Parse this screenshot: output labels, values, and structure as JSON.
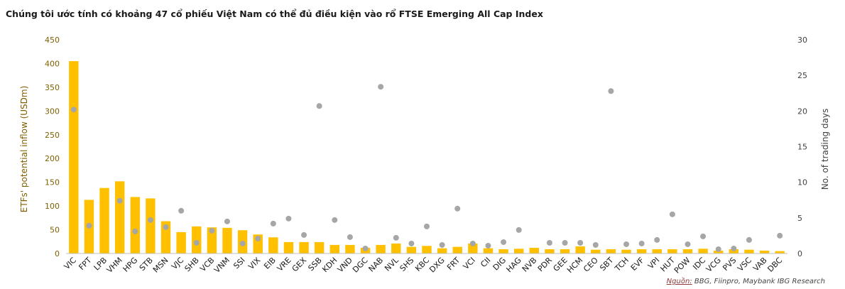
{
  "title": "Chúng tôi ước tính có khoảng 47 cổ phiếu Việt Nam có thể đủ điều kiện vào rổ FTSE Emerging All Cap Index",
  "source": {
    "label": "Nguồn:",
    "text": "BBG, Fiinpro, Maybank IBG Research"
  },
  "colors": {
    "bar": "#FFC000",
    "dot": "#A6A6A6",
    "left_axis_text": "#7F6000",
    "right_axis_text": "#404040",
    "axis_line": "#BFBFBF"
  },
  "chart_data": {
    "type": "bar",
    "categories": [
      "VIC",
      "FPT",
      "LPB",
      "VHM",
      "HPG",
      "STB",
      "MSN",
      "VJC",
      "SHB",
      "VCB",
      "VNM",
      "SSI",
      "VIX",
      "EIB",
      "VRE",
      "GEX",
      "SSB",
      "KDH",
      "VND",
      "DGC",
      "NAB",
      "NVL",
      "SHS",
      "KBC",
      "DXG",
      "FRT",
      "VCI",
      "CII",
      "DIG",
      "HAG",
      "NVB",
      "PDR",
      "GEE",
      "HCM",
      "CEO",
      "SBT",
      "TCH",
      "EVF",
      "VPI",
      "HUT",
      "POW",
      "IDC",
      "VCG",
      "PVS",
      "VSC",
      "VAB",
      "DBC"
    ],
    "series": [
      {
        "type": "bar",
        "axis": "left",
        "values": [
          405,
          113,
          138,
          152,
          119,
          116,
          68,
          45,
          57,
          55,
          54,
          49,
          40,
          34,
          24,
          24,
          24,
          18,
          18,
          12,
          18,
          21,
          14,
          16,
          11,
          14,
          21,
          11,
          9,
          10,
          12,
          9,
          9,
          15,
          8,
          9,
          8,
          9,
          9,
          9,
          9,
          10,
          6,
          9,
          8,
          6,
          5
        ]
      },
      {
        "type": "scatter",
        "axis": "right",
        "values": [
          20.2,
          3.9,
          null,
          7.4,
          3.1,
          4.7,
          3.7,
          6.0,
          1.5,
          3.2,
          4.5,
          1.4,
          2.1,
          4.2,
          4.9,
          2.6,
          20.7,
          4.7,
          2.3,
          0.7,
          23.4,
          2.2,
          1.4,
          3.8,
          1.2,
          6.3,
          1.4,
          1.1,
          1.6,
          3.3,
          null,
          1.5,
          1.5,
          1.5,
          1.2,
          22.8,
          1.3,
          1.4,
          1.9,
          5.5,
          1.3,
          2.4,
          0.6,
          0.7,
          1.9,
          null,
          2.5
        ]
      }
    ],
    "ylabel": "ETFs' potential inflow  (USDm)",
    "y2label": "No. of trading days",
    "ylim": [
      0,
      450
    ],
    "y2lim": [
      0,
      30
    ],
    "yticks": [
      "0",
      "50",
      "100",
      "150",
      "200",
      "250",
      "300",
      "350",
      "400",
      "450"
    ],
    "y2ticks": [
      "0",
      "5",
      "10",
      "15",
      "20",
      "25",
      "30"
    ],
    "grid": false,
    "legend": false
  }
}
